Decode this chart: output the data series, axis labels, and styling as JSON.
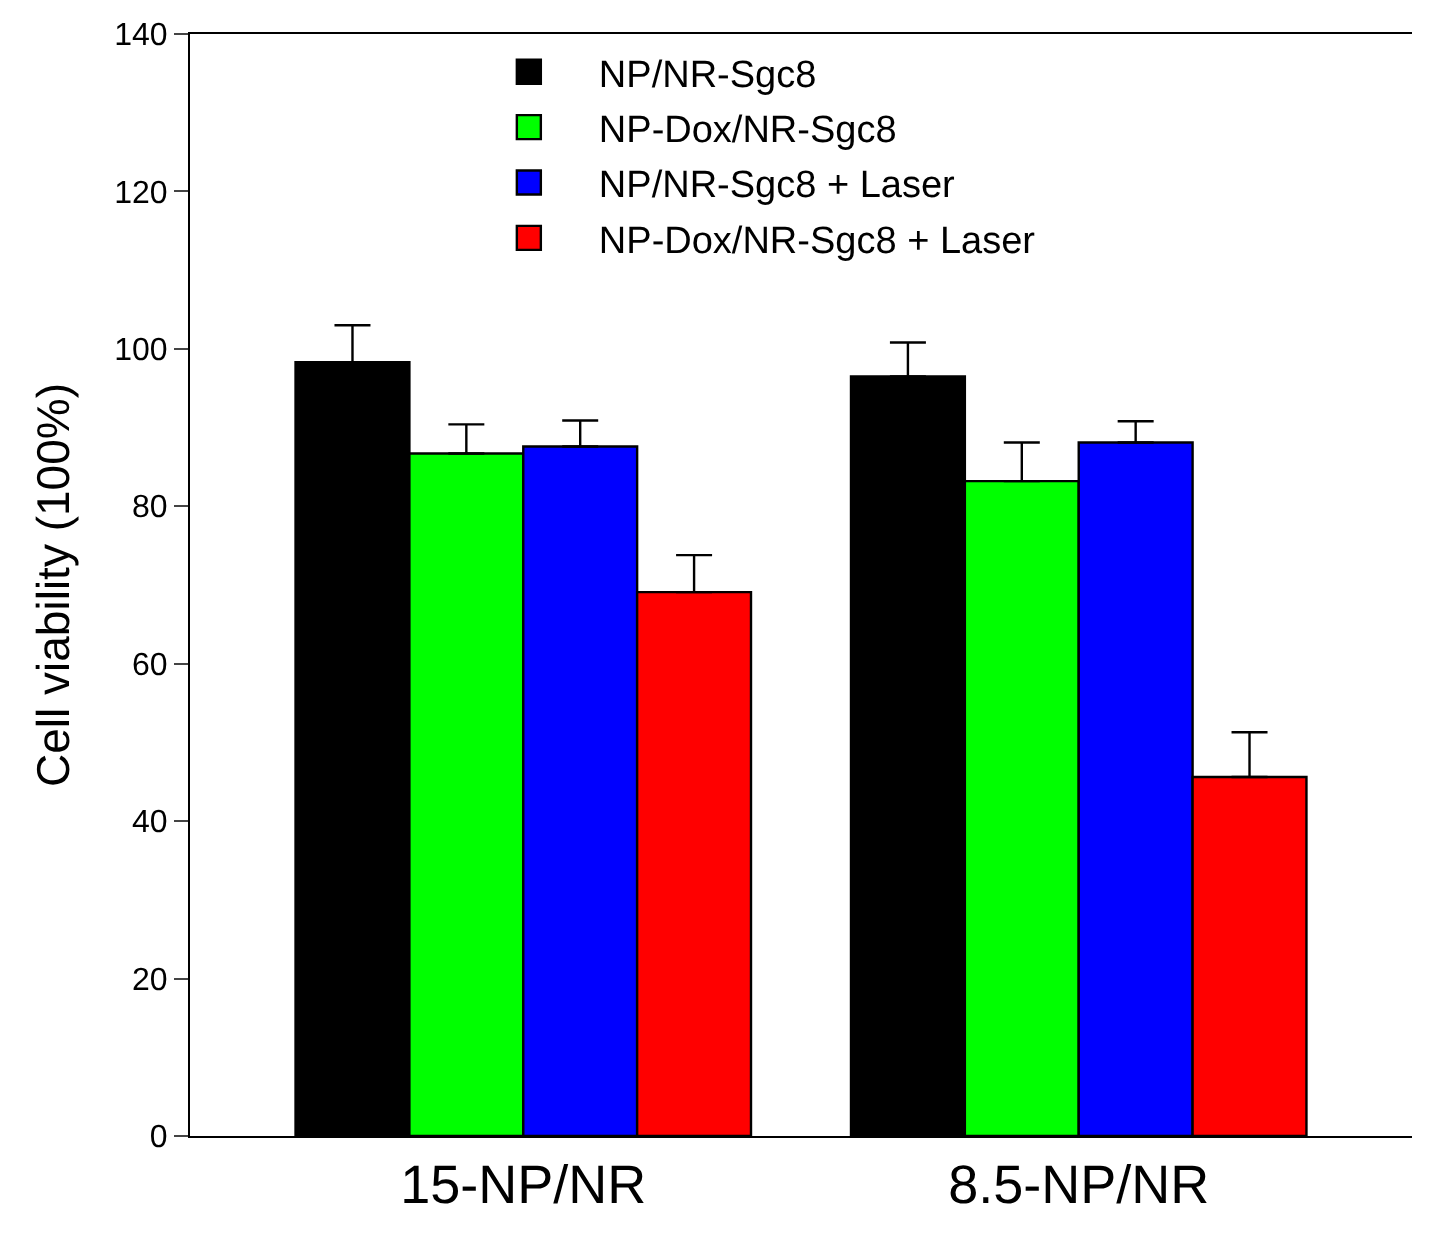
{
  "chart_data": {
    "type": "bar",
    "ylabel": "Cell viability (100%)",
    "categories": [
      "15-NP/NR",
      "8.5-NP/NR"
    ],
    "series": [
      {
        "name": "NP/NR-Sgc8",
        "color": "#000000",
        "values": [
          98.3,
          96.5
        ],
        "errors": [
          [
            98.3,
            103.0
          ],
          [
            96.5,
            100.8
          ]
        ]
      },
      {
        "name": "NP-Dox/NR-Sgc8",
        "color": "#00ff00",
        "values": [
          86.7,
          83.2
        ],
        "errors": [
          [
            86.7,
            90.4
          ],
          [
            83.2,
            88.1
          ]
        ]
      },
      {
        "name": "NP/NR-Sgc8 + Laser",
        "color": "#0000ff",
        "values": [
          87.6,
          88.1
        ],
        "errors": [
          [
            87.6,
            90.9
          ],
          [
            88.1,
            90.8
          ]
        ]
      },
      {
        "name": "NP-Dox/NR-Sgc8 + Laser",
        "color": "#ff0000",
        "values": [
          69.1,
          45.6
        ],
        "errors": [
          [
            69.1,
            73.8
          ],
          [
            45.6,
            51.3
          ]
        ]
      }
    ],
    "ylim": [
      0,
      140
    ],
    "yticks": [
      0,
      20,
      40,
      60,
      80,
      100,
      120,
      140
    ],
    "legend": "top"
  }
}
